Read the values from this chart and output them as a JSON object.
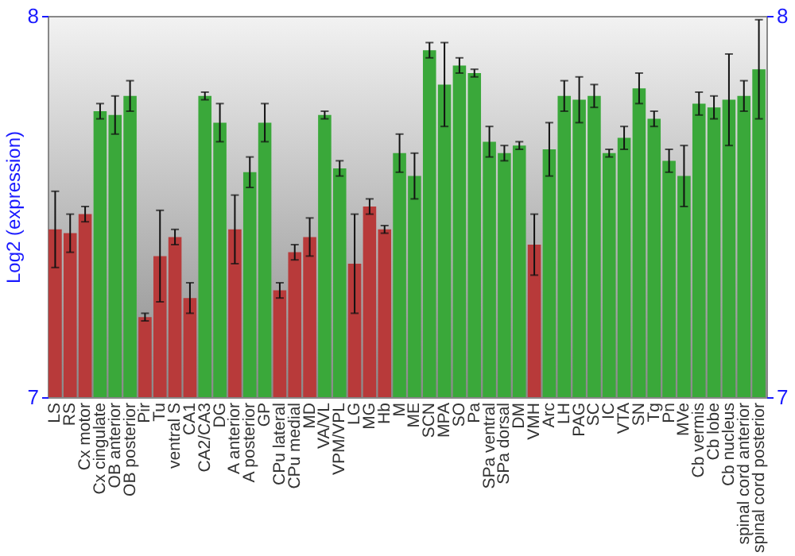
{
  "chart_data": {
    "type": "bar",
    "ylabel": "Log2 (expression)",
    "categories": [
      "LS",
      "RS",
      "Cx motor",
      "Cx cingulate",
      "OB anterior",
      "OB posterior",
      "Pir",
      "Tu",
      "ventral S",
      "CA1",
      "CA2/CA3",
      "DG",
      "A anterior",
      "A posterior",
      "GP",
      "CPu lateral",
      "CPu medial",
      "MD",
      "VA/VL",
      "VPM/VPL",
      "LG",
      "MG",
      "Hb",
      "M",
      "ME",
      "SCN",
      "MPA",
      "SO",
      "Pa",
      "SPa ventral",
      "SPa dorsal",
      "DM",
      "VMH",
      "Arc",
      "LH",
      "PAG",
      "SC",
      "IC",
      "VTA",
      "SN",
      "Tg",
      "Pn",
      "MVe",
      "Cb vermis",
      "Cb lobe",
      "Cb nucleus",
      "spinal cord anterior",
      "spinal cord posterior"
    ],
    "values": [
      7.44,
      7.43,
      7.48,
      7.75,
      7.74,
      7.79,
      7.21,
      7.37,
      7.42,
      7.26,
      7.79,
      7.72,
      7.44,
      7.59,
      7.72,
      7.28,
      7.38,
      7.42,
      7.74,
      7.6,
      7.35,
      7.5,
      7.44,
      7.64,
      7.58,
      7.91,
      7.82,
      7.87,
      7.85,
      7.67,
      7.64,
      7.66,
      7.4,
      7.65,
      7.79,
      7.78,
      7.79,
      7.64,
      7.68,
      7.81,
      7.73,
      7.62,
      7.58,
      7.77,
      7.76,
      7.78,
      7.79,
      7.86
    ],
    "errors": [
      0.1,
      0.05,
      0.02,
      0.02,
      0.05,
      0.04,
      0.01,
      0.12,
      0.02,
      0.04,
      0.01,
      0.05,
      0.09,
      0.04,
      0.05,
      0.02,
      0.02,
      0.05,
      0.01,
      0.02,
      0.13,
      0.02,
      0.01,
      0.05,
      0.06,
      0.02,
      0.11,
      0.02,
      0.01,
      0.04,
      0.02,
      0.01,
      0.08,
      0.07,
      0.04,
      0.06,
      0.03,
      0.01,
      0.03,
      0.04,
      0.02,
      0.03,
      0.08,
      0.03,
      0.03,
      0.12,
      0.04,
      0.13
    ],
    "colors": [
      "#b83a3a",
      "#b83a3a",
      "#b83a3a",
      "#3aa83a",
      "#3aa83a",
      "#3aa83a",
      "#b83a3a",
      "#b83a3a",
      "#b83a3a",
      "#b83a3a",
      "#3aa83a",
      "#3aa83a",
      "#b83a3a",
      "#3aa83a",
      "#3aa83a",
      "#b83a3a",
      "#b83a3a",
      "#b83a3a",
      "#3aa83a",
      "#3aa83a",
      "#b83a3a",
      "#b83a3a",
      "#b83a3a",
      "#3aa83a",
      "#3aa83a",
      "#3aa83a",
      "#3aa83a",
      "#3aa83a",
      "#3aa83a",
      "#3aa83a",
      "#3aa83a",
      "#3aa83a",
      "#b83a3a",
      "#3aa83a",
      "#3aa83a",
      "#3aa83a",
      "#3aa83a",
      "#3aa83a",
      "#3aa83a",
      "#3aa83a",
      "#3aa83a",
      "#3aa83a",
      "#3aa83a",
      "#3aa83a",
      "#3aa83a",
      "#3aa83a",
      "#3aa83a",
      "#3aa83a"
    ],
    "ylim": [
      7,
      8
    ],
    "yticks": [
      7,
      8
    ],
    "y2lim": [
      7,
      8
    ],
    "y2ticks": [
      7,
      8
    ]
  }
}
